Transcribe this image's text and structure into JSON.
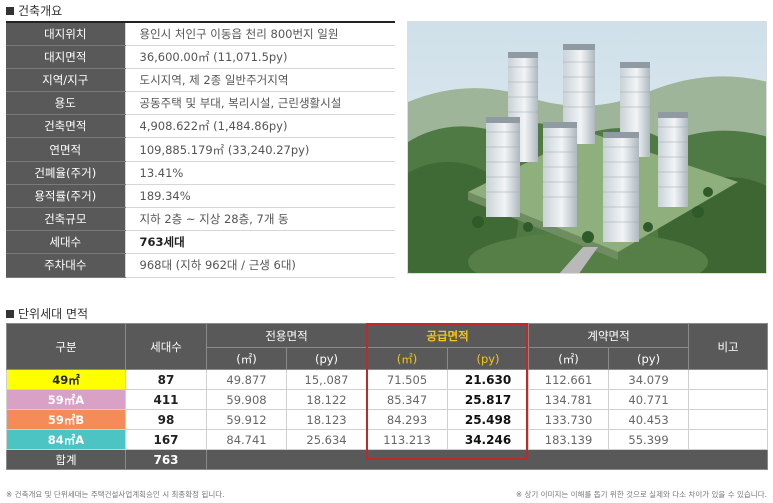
{
  "overview": {
    "title": "건축개요",
    "rows": [
      {
        "label": "대지위치",
        "value": "용인시 처인구 이동읍 천리 800번지 일원"
      },
      {
        "label": "대지면적",
        "value": "36,600.00㎡ (11,071.5py)"
      },
      {
        "label": "지역/지구",
        "value": "도시지역, 제 2종 일반주거지역"
      },
      {
        "label": "용도",
        "value": "공동주택 및 부대, 복리시설, 근린생활시설"
      },
      {
        "label": "건축면적",
        "value": "4,908.622㎡ (1,484.86py)"
      },
      {
        "label": "연면적",
        "value": "109,885.179㎡ (33,240.27py)"
      },
      {
        "label": "건폐율(주거)",
        "value": "13.41%"
      },
      {
        "label": "용적률(주거)",
        "value": "189.34%"
      },
      {
        "label": "건축규모",
        "value": "지하 2층 ~ 지상 28층, 7개 동"
      },
      {
        "label": "세대수",
        "value": "763세대"
      },
      {
        "label": "주차대수",
        "value": "968대 (지하 962대 / 근생 6대)"
      }
    ]
  },
  "units": {
    "title": "단위세대 면적",
    "headers": {
      "category": "구분",
      "households": "세대수",
      "exclusive": "전용면적",
      "supply": "공급면적",
      "contract": "계약면적",
      "note": "비고",
      "sqm": "(㎡)",
      "py": "(py)"
    },
    "rows": [
      {
        "type": "49㎡",
        "color": "#ffff00",
        "text_color": "#222222",
        "count": "87",
        "ex_sqm": "49.877",
        "ex_py": "15,.087",
        "sup_sqm": "71.505",
        "sup_py": "21.630",
        "con_sqm": "112.661",
        "con_py": "34.079",
        "note": ""
      },
      {
        "type": "59㎡A",
        "color": "#d9a1c6",
        "text_color": "#ffffff",
        "count": "411",
        "ex_sqm": "59.908",
        "ex_py": "18.122",
        "sup_sqm": "85.347",
        "sup_py": "25.817",
        "con_sqm": "134.781",
        "con_py": "40.771",
        "note": ""
      },
      {
        "type": "59㎡B",
        "color": "#f58b58",
        "text_color": "#ffffff",
        "count": "98",
        "ex_sqm": "59.912",
        "ex_py": "18.123",
        "sup_sqm": "84.293",
        "sup_py": "25.498",
        "con_sqm": "133.730",
        "con_py": "40.453",
        "note": ""
      },
      {
        "type": "84㎡A",
        "color": "#4cc4c4",
        "text_color": "#ffffff",
        "count": "167",
        "ex_sqm": "84.741",
        "ex_py": "25.634",
        "sup_sqm": "113.213",
        "sup_py": "34.246",
        "con_sqm": "183.139",
        "con_py": "55.399",
        "note": ""
      }
    ],
    "total": {
      "label": "합계",
      "count": "763"
    }
  },
  "footnotes": {
    "left": "※ 건축개요 및 단위세대는 주택건설사업계획승인 시 최종확정 됩니다.",
    "right": "※ 상기 이미지는 이해를 돕기 위한 것으로 실제와 다소 차이가 있을 수 있습니다."
  },
  "colors": {
    "header_gray": "#595959",
    "supply_highlight": "#f5c518",
    "supply_box": "#c0282d"
  }
}
